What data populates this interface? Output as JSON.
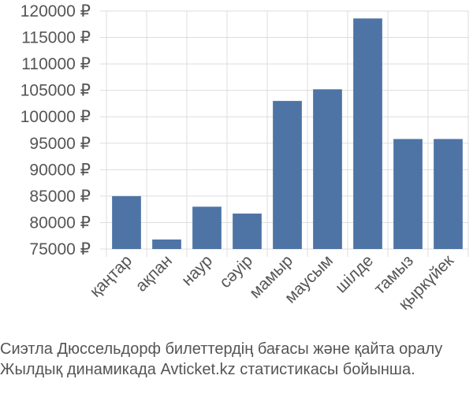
{
  "chart_data": {
    "type": "bar",
    "categories": [
      "қаңтар",
      "ақпан",
      "наур",
      "сәуір",
      "мамыр",
      "маусым",
      "шілде",
      "тамыз",
      "қыркүйек"
    ],
    "values": [
      85000,
      76800,
      83000,
      81700,
      103000,
      105200,
      118600,
      95800,
      95800
    ],
    "y_ticks": [
      75000,
      80000,
      85000,
      90000,
      95000,
      100000,
      105000,
      110000,
      115000,
      120000
    ],
    "y_unit": "₽",
    "ylim": [
      75000,
      120000
    ],
    "grid": true,
    "bar_color": "#4e74a6"
  },
  "caption": {
    "line1": "Сиэтла Дюссельдорф билеттердің бағасы және қайта оралу",
    "line2": "Жылдық динамикада Avticket.kz статистикасы бойынша."
  }
}
